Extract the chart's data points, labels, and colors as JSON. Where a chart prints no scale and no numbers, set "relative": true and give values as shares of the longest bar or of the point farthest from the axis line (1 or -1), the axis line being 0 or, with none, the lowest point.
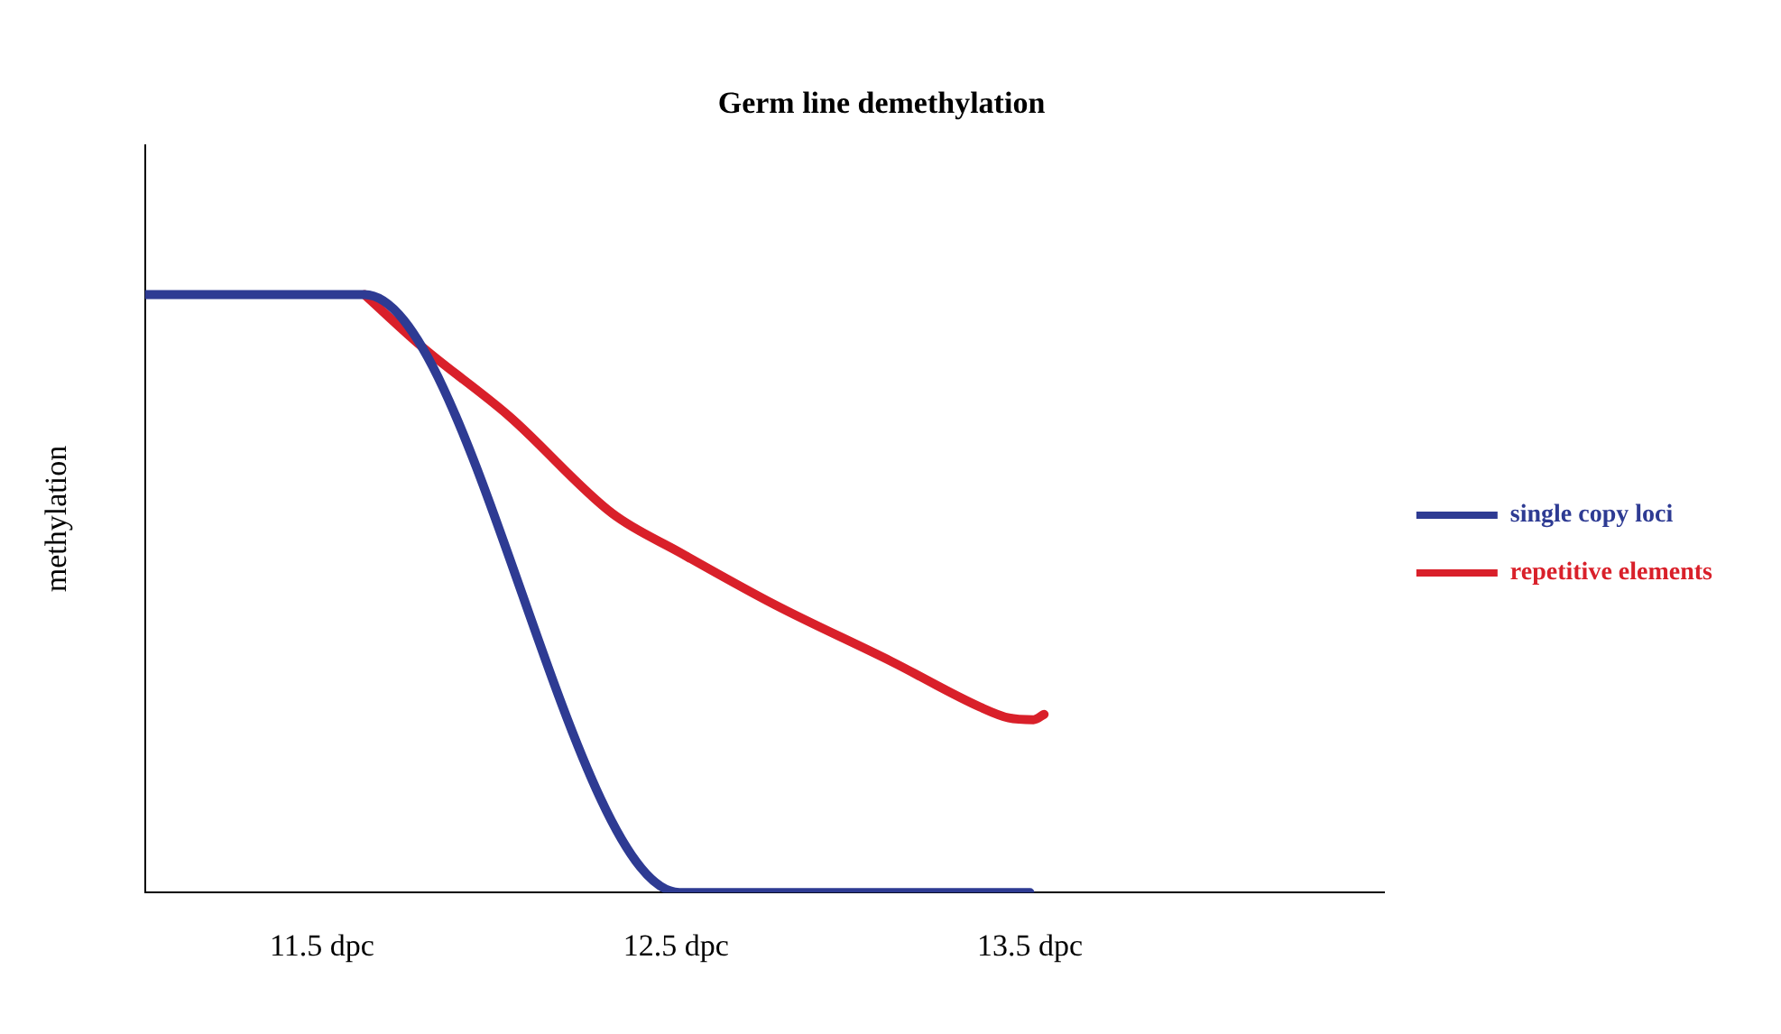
{
  "chart_data": {
    "type": "line",
    "title": "Germ line demethylation",
    "ylabel": "methylation",
    "relative": true,
    "xlim": [
      11.0,
      14.5
    ],
    "xticks": [
      {
        "value": 11.5,
        "label": "11.5 dpc"
      },
      {
        "value": 12.5,
        "label": "12.5 dpc"
      },
      {
        "value": 13.5,
        "label": "13.5 dpc"
      }
    ],
    "grid": false,
    "legend": "right",
    "marker": "none",
    "line_style": "solid",
    "series": [
      {
        "name": "single copy loci",
        "color": "#2e3b93",
        "x": [
          11.0,
          11.62,
          12.51,
          13.5
        ],
        "values": [
          1,
          1,
          0,
          0
        ]
      },
      {
        "name": "repetitive elements",
        "color": "#d9202a",
        "x": [
          11.62,
          11.78,
          12.03,
          12.32,
          12.51,
          12.78,
          13.11,
          13.36,
          13.44,
          13.51,
          13.54
        ],
        "values": [
          1,
          0.914,
          0.796,
          0.634,
          0.569,
          0.481,
          0.386,
          0.31,
          0.292,
          0.289,
          0.298
        ]
      }
    ]
  }
}
